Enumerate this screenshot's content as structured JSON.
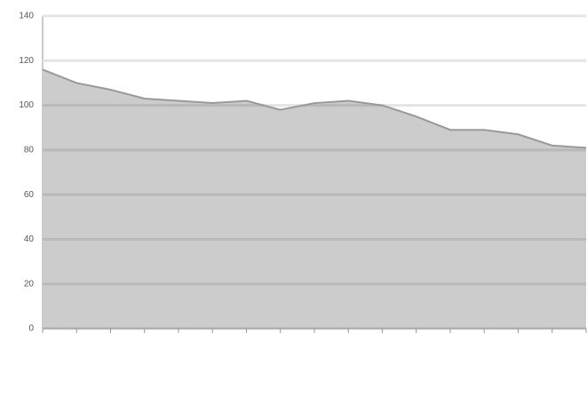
{
  "chart_data": {
    "type": "area",
    "categories": [
      null,
      null,
      null,
      null,
      null,
      null,
      null,
      null,
      null,
      null,
      null,
      null,
      null,
      null,
      null,
      null,
      null
    ],
    "values": [
      116,
      110,
      107,
      103,
      102,
      101,
      102,
      98,
      101,
      102,
      100,
      95,
      89,
      89,
      87,
      82,
      81
    ],
    "color": "#cccccc",
    "line_color": "#999999",
    "ylim": [
      0,
      140
    ],
    "yticks": [
      0,
      20,
      40,
      60,
      80,
      100,
      120,
      140
    ],
    "grid": true
  }
}
